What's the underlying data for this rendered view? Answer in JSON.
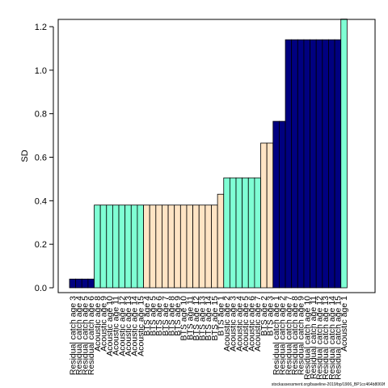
{
  "chart_data": {
    "type": "bar",
    "ylabel": "SD",
    "xlabel": "",
    "title": "",
    "ylim": [
      0,
      1.2
    ],
    "yticks": [
      0.0,
      0.2,
      0.4,
      0.6,
      0.8,
      1.0,
      1.2
    ],
    "ytick_labels": [
      "0.0",
      "0.2",
      "0.4",
      "0.6",
      "0.8",
      "1.0",
      "1.2"
    ],
    "grid": false,
    "legend": "none",
    "colors": {
      "Residual catch": "#000080",
      "Acoustic": "#7FFFD4",
      "BTS": "#FFE4C4"
    },
    "categories": [
      "Residual catch age 3",
      "Residual catch age 4",
      "Residual catch age 5",
      "Residual catch age 6",
      "Acoustic age 8",
      "Acoustic age 9",
      "Acoustic age 10",
      "Acoustic age 11",
      "Acoustic age 12",
      "Acoustic age 13",
      "Acoustic age 14",
      "Acoustic age 15",
      "BTS age 4",
      "BTS age 5",
      "BTS age 6",
      "BTS age 7",
      "BTS age 8",
      "BTS age 9",
      "BTS age 10",
      "BTS age 11",
      "BTS age 12",
      "BTS age 13",
      "BTS age 14",
      "BTS age 15",
      "BTS age 1",
      "Acoustic age 2",
      "Acoustic age 3",
      "Acoustic age 4",
      "Acoustic age 5",
      "Acoustic age 6",
      "Acoustic age 7",
      "BTS age 2",
      "BTS age 3",
      "Residual catch age 1",
      "Residual catch age 2",
      "Residual catch age 7",
      "Residual catch age 8",
      "Residual catch age 9",
      "Residual catch age 10",
      "Residual catch age 11",
      "Residual catch age 12",
      "Residual catch age 13",
      "Residual catch age 14",
      "Residual catch age 15",
      "Acoustic age 1"
    ],
    "groups": [
      "Residual catch",
      "Residual catch",
      "Residual catch",
      "Residual catch",
      "Acoustic",
      "Acoustic",
      "Acoustic",
      "Acoustic",
      "Acoustic",
      "Acoustic",
      "Acoustic",
      "Acoustic",
      "BTS",
      "BTS",
      "BTS",
      "BTS",
      "BTS",
      "BTS",
      "BTS",
      "BTS",
      "BTS",
      "BTS",
      "BTS",
      "BTS",
      "BTS",
      "Acoustic",
      "Acoustic",
      "Acoustic",
      "Acoustic",
      "Acoustic",
      "Acoustic",
      "BTS",
      "BTS",
      "Residual catch",
      "Residual catch",
      "Residual catch",
      "Residual catch",
      "Residual catch",
      "Residual catch",
      "Residual catch",
      "Residual catch",
      "Residual catch",
      "Residual catch",
      "Residual catch",
      "Acoustic"
    ],
    "values": [
      0.04,
      0.04,
      0.04,
      0.04,
      0.38,
      0.38,
      0.38,
      0.38,
      0.38,
      0.38,
      0.38,
      0.38,
      0.38,
      0.38,
      0.38,
      0.38,
      0.38,
      0.38,
      0.38,
      0.38,
      0.38,
      0.38,
      0.38,
      0.38,
      0.43,
      0.505,
      0.505,
      0.505,
      0.505,
      0.505,
      0.505,
      0.665,
      0.665,
      0.765,
      0.765,
      1.14,
      1.14,
      1.14,
      1.14,
      1.14,
      1.14,
      1.14,
      1.14,
      1.14,
      1.235
    ]
  },
  "footer": {
    "text": "stockassessment.org/baseline-2019/bp/1906_BP1cc464b8069f"
  }
}
